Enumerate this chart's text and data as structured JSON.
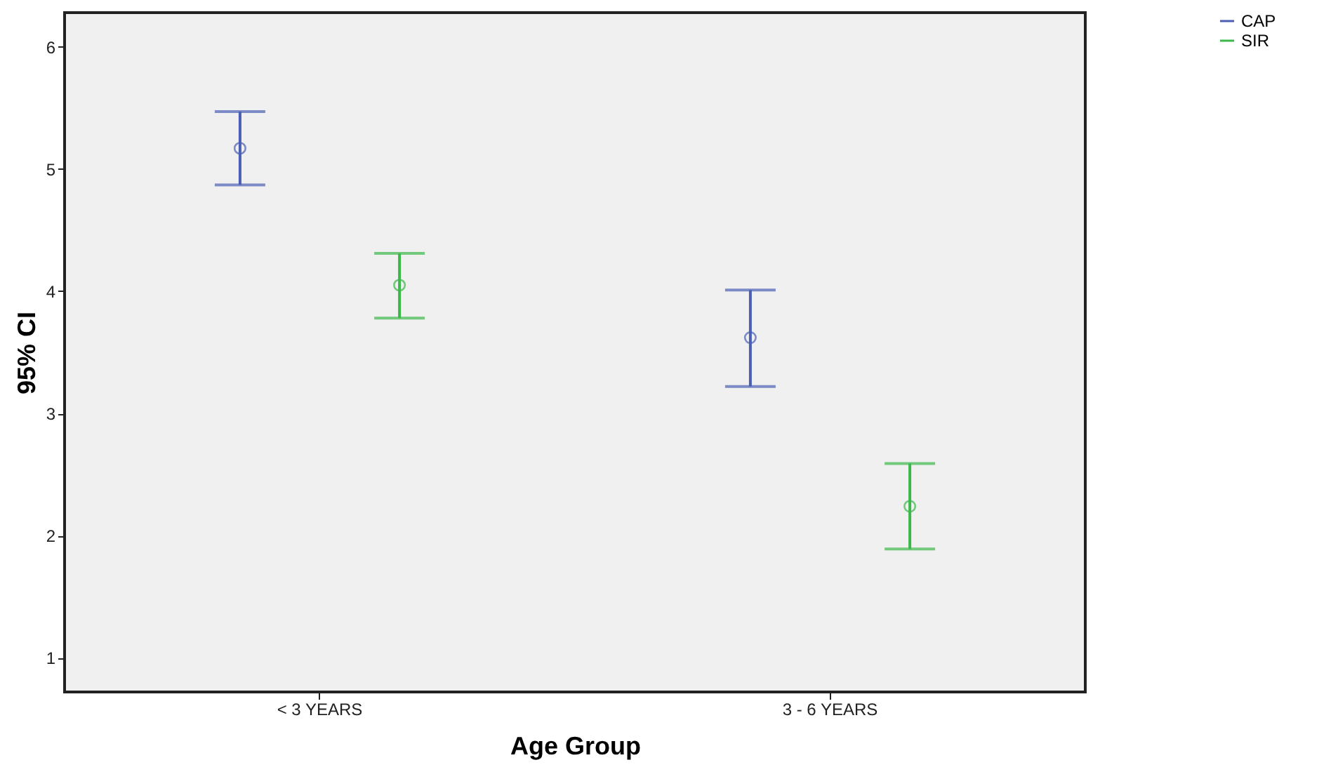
{
  "chart_data": {
    "type": "scatter",
    "xlabel": "Age Group",
    "ylabel": "95% CI",
    "categories": [
      "< 3 YEARS",
      "3 - 6 YEARS"
    ],
    "series": [
      {
        "name": "CAP",
        "color": "#4a5fb4",
        "values": [
          5.17,
          3.62
        ],
        "errors": [
          [
            4.87,
            5.47
          ],
          [
            3.22,
            4.01
          ]
        ]
      },
      {
        "name": "SIR",
        "color": "#3cb84a",
        "values": [
          4.05,
          2.24
        ],
        "errors": [
          [
            3.78,
            4.31
          ],
          [
            1.89,
            2.59
          ]
        ]
      }
    ],
    "ylim": [
      0.72,
      6.28
    ],
    "yticks": [
      1,
      2,
      3,
      4,
      5,
      6
    ],
    "marker": "circle",
    "grid": false,
    "legend": "top right"
  }
}
